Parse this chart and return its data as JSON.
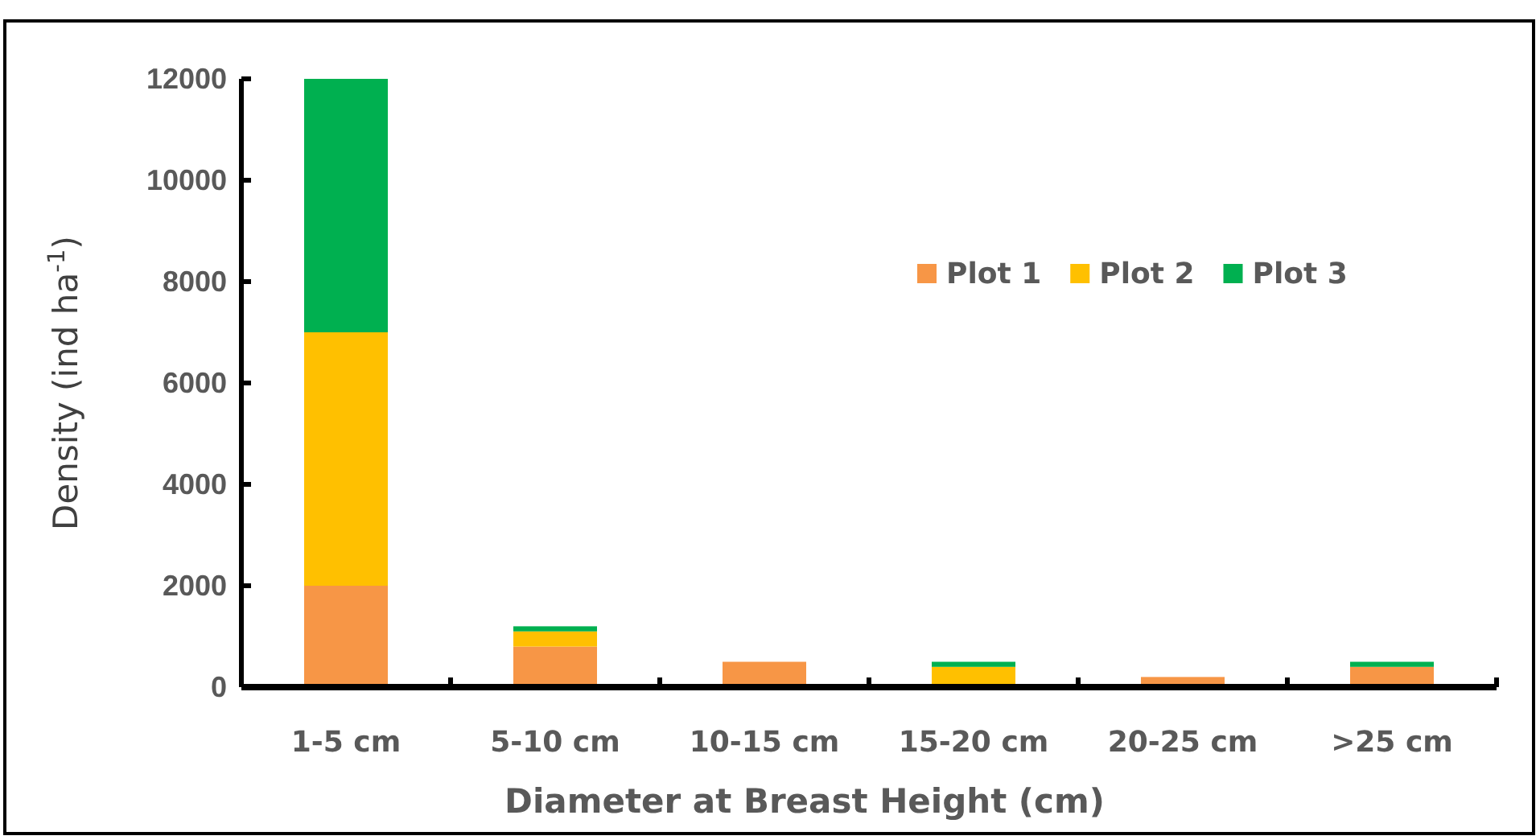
{
  "chart_data": {
    "type": "bar",
    "stacked": true,
    "xlabel": "Diameter at Breast Height (cm)",
    "ylabel": "Density (ind ha$^{-1}$)",
    "categories": [
      "1-5 cm",
      "5-10 cm",
      "10-15 cm",
      "15-20 cm",
      "20-25 cm",
      ">25 cm"
    ],
    "series": [
      {
        "name": "Plot 1",
        "color": "#f79646",
        "values": [
          2000,
          800,
          500,
          0,
          200,
          400
        ]
      },
      {
        "name": "Plot 2",
        "color": "#ffc000",
        "values": [
          5000,
          300,
          0,
          400,
          0,
          0
        ]
      },
      {
        "name": "Plot 3",
        "color": "#00b050",
        "values": [
          5000,
          100,
          0,
          100,
          0,
          100
        ]
      }
    ],
    "ylim": [
      0,
      12000
    ],
    "yticks": [
      0,
      2000,
      4000,
      6000,
      8000,
      10000,
      12000
    ],
    "grid": false,
    "legend": "top right"
  }
}
